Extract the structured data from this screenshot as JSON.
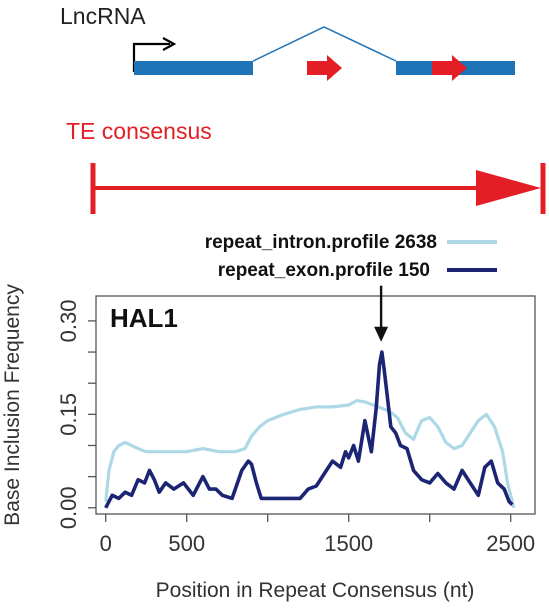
{
  "schematic": {
    "lncrna_label": "LncRNA",
    "te_label": "TE consensus",
    "colors": {
      "exon": "#1f73b7",
      "te_arrow": "#e31e24",
      "intron_line": "#1f73b7",
      "tss": "#000000"
    }
  },
  "legend": {
    "entries": [
      {
        "label": "repeat_intron.profile 2638",
        "color": "#add8e6"
      },
      {
        "label": "repeat_exon.profile 150",
        "color": "#1c2574"
      }
    ]
  },
  "chart_data": {
    "type": "line",
    "panel_label": "HAL1",
    "xlabel": "Position in Repeat Consensus (nt)",
    "ylabel": "Base Inclusion Frequency",
    "xlim": [
      -60,
      2650
    ],
    "ylim": [
      -0.01,
      0.34
    ],
    "xticks": [
      0,
      500,
      1000,
      1500,
      2000,
      2500
    ],
    "xtick_labels": [
      "0",
      "500",
      "",
      "1500",
      "",
      "2500"
    ],
    "yticks": [
      0.0,
      0.05,
      0.1,
      0.15,
      0.2,
      0.25,
      0.3
    ],
    "ytick_labels": [
      "0.00",
      "",
      "",
      "0.15",
      "",
      "",
      "0.30"
    ],
    "annotation": {
      "type": "arrow",
      "x": 1700,
      "y": 0.265
    },
    "series": [
      {
        "name": "repeat_intron.profile 2638",
        "color": "#add8e6",
        "x": [
          0,
          20,
          50,
          80,
          120,
          160,
          200,
          250,
          300,
          400,
          500,
          600,
          700,
          800,
          860,
          900,
          950,
          1000,
          1100,
          1200,
          1300,
          1400,
          1500,
          1550,
          1600,
          1650,
          1700,
          1750,
          1800,
          1850,
          1900,
          1950,
          2000,
          2050,
          2100,
          2150,
          2200,
          2250,
          2300,
          2350,
          2400,
          2450,
          2480,
          2520
        ],
        "y": [
          0.01,
          0.06,
          0.09,
          0.1,
          0.105,
          0.1,
          0.095,
          0.09,
          0.09,
          0.09,
          0.09,
          0.095,
          0.09,
          0.09,
          0.095,
          0.115,
          0.13,
          0.14,
          0.15,
          0.158,
          0.162,
          0.162,
          0.165,
          0.172,
          0.17,
          0.165,
          0.16,
          0.155,
          0.145,
          0.12,
          0.11,
          0.14,
          0.145,
          0.13,
          0.105,
          0.095,
          0.1,
          0.12,
          0.14,
          0.15,
          0.13,
          0.09,
          0.04,
          0.0
        ]
      },
      {
        "name": "repeat_exon.profile 150",
        "color": "#1c2574",
        "x": [
          0,
          40,
          80,
          120,
          160,
          200,
          240,
          270,
          300,
          330,
          370,
          420,
          480,
          540,
          600,
          640,
          680,
          720,
          780,
          840,
          880,
          900,
          930,
          960,
          1000,
          1050,
          1100,
          1150,
          1200,
          1250,
          1300,
          1350,
          1400,
          1450,
          1480,
          1500,
          1530,
          1560,
          1600,
          1640,
          1670,
          1690,
          1705,
          1720,
          1740,
          1760,
          1790,
          1820,
          1860,
          1900,
          1950,
          2000,
          2050,
          2100,
          2150,
          2200,
          2250,
          2300,
          2340,
          2380,
          2420,
          2460,
          2490,
          2510
        ],
        "y": [
          0.0,
          0.02,
          0.015,
          0.025,
          0.02,
          0.045,
          0.04,
          0.06,
          0.045,
          0.025,
          0.04,
          0.03,
          0.04,
          0.02,
          0.05,
          0.03,
          0.03,
          0.02,
          0.015,
          0.06,
          0.075,
          0.07,
          0.04,
          0.015,
          0.015,
          0.015,
          0.015,
          0.015,
          0.015,
          0.03,
          0.035,
          0.055,
          0.075,
          0.065,
          0.09,
          0.08,
          0.1,
          0.075,
          0.14,
          0.09,
          0.16,
          0.23,
          0.25,
          0.22,
          0.175,
          0.13,
          0.12,
          0.1,
          0.095,
          0.06,
          0.045,
          0.04,
          0.055,
          0.04,
          0.03,
          0.06,
          0.04,
          0.02,
          0.065,
          0.075,
          0.04,
          0.03,
          0.01,
          0.005
        ]
      }
    ]
  }
}
